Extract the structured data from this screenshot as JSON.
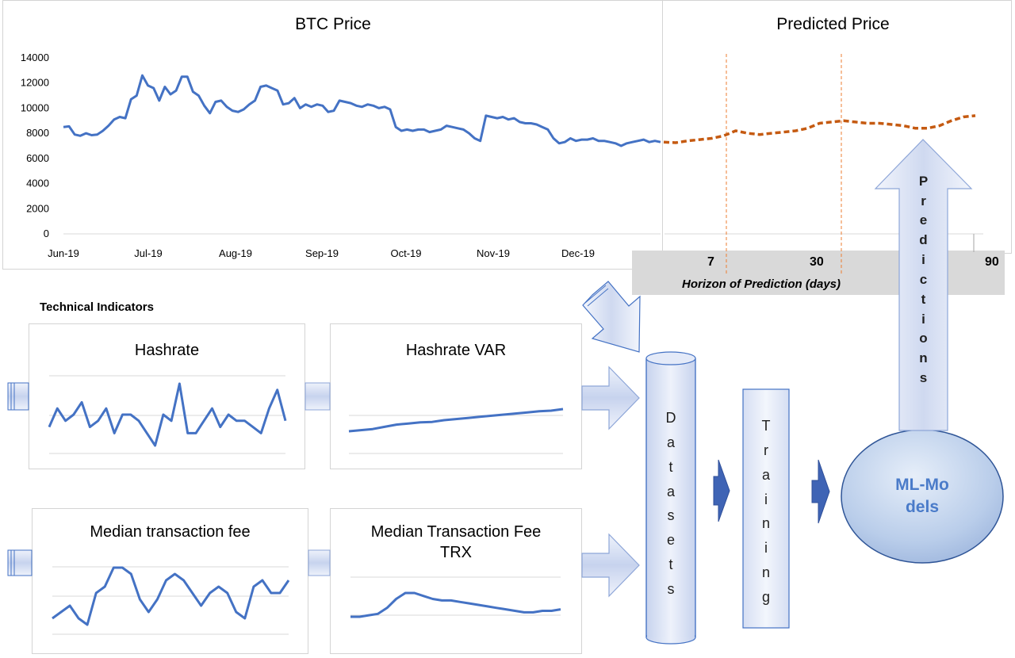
{
  "main_chart": {
    "title": "BTC Price",
    "y_ticks": [
      "0",
      "2000",
      "4000",
      "6000",
      "8000",
      "10000",
      "12000",
      "14000"
    ],
    "x_ticks": [
      "Jun-19",
      "Jul-19",
      "Aug-19",
      "Sep-19",
      "Oct-19",
      "Nov-19",
      "Dec-19"
    ],
    "line_color": "#4472c4"
  },
  "prediction": {
    "title": "Predicted Price",
    "horizons": [
      "7",
      "30",
      "90"
    ],
    "axis_label": "Horizon of Prediction (days)",
    "line_color": "#c55a11"
  },
  "section_label": "Technical Indicators",
  "indicators": [
    {
      "title": "Hashrate"
    },
    {
      "title": "Hashrate VAR"
    },
    {
      "title": "Median transaction fee"
    },
    {
      "title": "Median Transaction Fee TRX"
    }
  ],
  "pipeline": {
    "datasets": "Datasets",
    "training": "Training",
    "model": "ML-Models",
    "predictions": "Predictions"
  },
  "chart_data": {
    "type": "line",
    "x": [
      "Jun-19",
      "Jul-19",
      "Aug-19",
      "Sep-19",
      "Oct-19",
      "Nov-19",
      "Dec-19"
    ],
    "ylim": [
      0,
      14000
    ],
    "grid": false,
    "series": [
      {
        "values_daily_approx": [
          8500,
          8550,
          7900,
          7800,
          8000,
          7850,
          7900,
          8200,
          8600,
          9100,
          9300,
          9200,
          10700,
          11000,
          12600,
          11800,
          11600,
          10600,
          11700,
          11100,
          11400,
          12500,
          12500,
          11300,
          11000,
          10200,
          9600,
          10500,
          10600,
          10100,
          9800,
          9700,
          9900,
          10300,
          10600,
          11700,
          11800,
          11600,
          11400,
          10300,
          10400,
          10800,
          10000,
          10300,
          10100,
          10300,
          10200,
          9700,
          9800,
          10600,
          10500,
          10400,
          10200,
          10100,
          10300,
          10200,
          10000,
          10100,
          9900,
          8500,
          8200,
          8300,
          8200,
          8300,
          8300,
          8100,
          8200,
          8300,
          8600,
          8500,
          8400,
          8300,
          8000,
          7600,
          7400,
          9400,
          9300,
          9200,
          9300,
          9100,
          9200,
          8900,
          8800,
          8800,
          8700,
          8500,
          8300,
          7600,
          7200,
          7300,
          7600,
          7400,
          7500,
          7500,
          7600,
          7400,
          7400,
          7300,
          7200,
          7000,
          7200,
          7300,
          7400,
          7500,
          7300,
          7400,
          7300
        ]
      }
    ]
  },
  "prediction_data": {
    "type": "line",
    "values_approx": [
      7300,
      7250,
      7400,
      7500,
      7600,
      7800,
      8200,
      8000,
      7900,
      8000,
      8100,
      8200,
      8400,
      8800,
      8900,
      9000,
      8900,
      8800,
      8800,
      8700,
      8600,
      8400,
      8400,
      8600,
      9000,
      9300,
      9400
    ]
  }
}
